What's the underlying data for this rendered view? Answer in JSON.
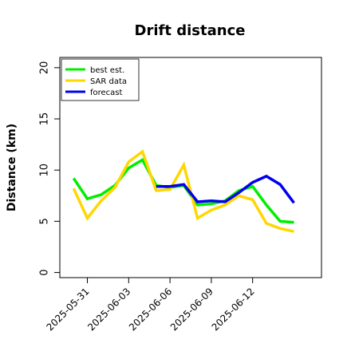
{
  "chart_data": {
    "type": "line",
    "title": "Drift distance",
    "xlabel": "",
    "ylabel": "Distance (km)",
    "ylim": [
      -0.5,
      21
    ],
    "yticks": [
      0,
      5,
      10,
      15,
      20
    ],
    "xticks": [
      "2025-05-31",
      "2025-06-03",
      "2025-06-06",
      "2025-06-09",
      "2025-06-12"
    ],
    "xlim": [
      "2025-05-29",
      "2025-06-17"
    ],
    "grid": false,
    "legend_position": "top-left",
    "colors": {
      "best": "#00ee00",
      "sar": "#ffd700",
      "forecast": "#0000ee"
    },
    "series": [
      {
        "name": "best est.",
        "color": "#00ee00",
        "points": [
          {
            "x": "2025-05-30",
            "y": 9.2
          },
          {
            "x": "2025-05-31",
            "y": 7.2
          },
          {
            "x": "2025-06-01",
            "y": 7.6
          },
          {
            "x": "2025-06-02",
            "y": 8.5
          },
          {
            "x": "2025-06-03",
            "y": 10.2
          },
          {
            "x": "2025-06-04",
            "y": 11.0
          },
          {
            "x": "2025-06-05",
            "y": 8.5
          },
          {
            "x": "2025-06-06",
            "y": 8.3
          },
          {
            "x": "2025-06-07",
            "y": 8.5
          },
          {
            "x": "2025-06-08",
            "y": 6.6
          },
          {
            "x": "2025-06-09",
            "y": 6.7
          },
          {
            "x": "2025-06-10",
            "y": 7.0
          },
          {
            "x": "2025-06-11",
            "y": 8.0
          },
          {
            "x": "2025-06-12",
            "y": 8.4
          },
          {
            "x": "2025-06-13",
            "y": 6.6
          },
          {
            "x": "2025-06-14",
            "y": 5.0
          },
          {
            "x": "2025-06-15",
            "y": 4.9
          }
        ]
      },
      {
        "name": "SAR data",
        "color": "#ffd700",
        "points": [
          {
            "x": "2025-05-30",
            "y": 8.2
          },
          {
            "x": "2025-05-31",
            "y": 5.3
          },
          {
            "x": "2025-06-01",
            "y": 7.0
          },
          {
            "x": "2025-06-02",
            "y": 8.3
          },
          {
            "x": "2025-06-03",
            "y": 10.8
          },
          {
            "x": "2025-06-04",
            "y": 11.8
          },
          {
            "x": "2025-06-05",
            "y": 8.0
          },
          {
            "x": "2025-06-06",
            "y": 8.1
          },
          {
            "x": "2025-06-07",
            "y": 10.5
          },
          {
            "x": "2025-06-08",
            "y": 5.3
          },
          {
            "x": "2025-06-09",
            "y": 6.1
          },
          {
            "x": "2025-06-10",
            "y": 6.6
          },
          {
            "x": "2025-06-11",
            "y": 7.5
          },
          {
            "x": "2025-06-12",
            "y": 7.1
          },
          {
            "x": "2025-06-13",
            "y": 4.8
          },
          {
            "x": "2025-06-14",
            "y": 4.3
          },
          {
            "x": "2025-06-15",
            "y": 4.0
          }
        ]
      },
      {
        "name": "forecast",
        "color": "#0000ee",
        "points": [
          {
            "x": "2025-06-05",
            "y": 8.4
          },
          {
            "x": "2025-06-06",
            "y": 8.4
          },
          {
            "x": "2025-06-07",
            "y": 8.6
          },
          {
            "x": "2025-06-08",
            "y": 6.9
          },
          {
            "x": "2025-06-09",
            "y": 7.0
          },
          {
            "x": "2025-06-10",
            "y": 6.9
          },
          {
            "x": "2025-06-11",
            "y": 7.8
          },
          {
            "x": "2025-06-12",
            "y": 8.8
          },
          {
            "x": "2025-06-13",
            "y": 9.4
          },
          {
            "x": "2025-06-14",
            "y": 8.6
          },
          {
            "x": "2025-06-15",
            "y": 6.8
          }
        ]
      }
    ]
  }
}
